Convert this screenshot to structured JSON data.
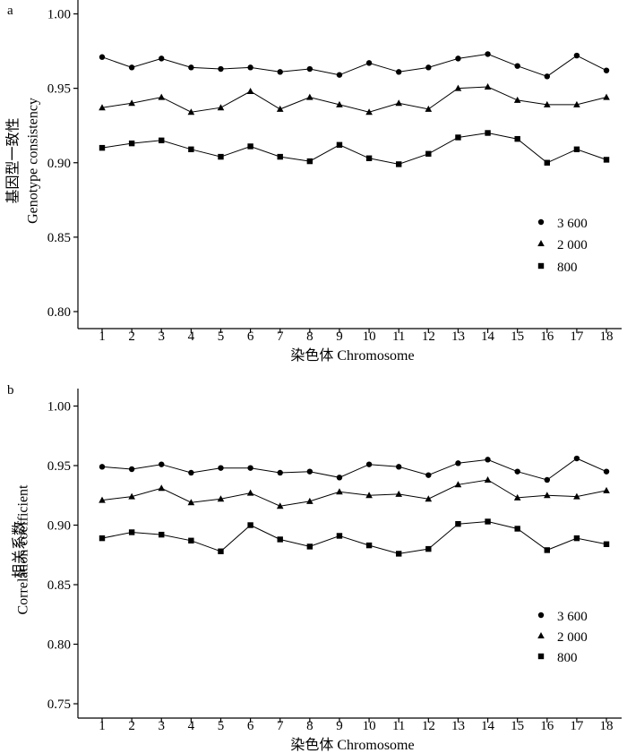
{
  "chart_data": [
    {
      "type": "line",
      "panel_label": "a",
      "ylabel_cn": "基因型一致性",
      "ylabel_en": "Genotype consistency",
      "xlabel": "染色体 Chromosome",
      "ylim": [
        0.8,
        1.0
      ],
      "yticks": [
        "0.80",
        "0.85",
        "0.90",
        "0.95",
        "1.00"
      ],
      "categories": [
        "1",
        "2",
        "3",
        "4",
        "5",
        "6",
        "7",
        "8",
        "9",
        "10",
        "11",
        "12",
        "13",
        "14",
        "15",
        "16",
        "17",
        "18"
      ],
      "legend_position": "bottom-right",
      "series": [
        {
          "name": "3 600",
          "marker": "circle",
          "values": [
            0.971,
            0.964,
            0.97,
            0.964,
            0.963,
            0.964,
            0.961,
            0.963,
            0.959,
            0.967,
            0.961,
            0.964,
            0.97,
            0.973,
            0.965,
            0.958,
            0.972,
            0.962
          ]
        },
        {
          "name": "2 000",
          "marker": "triangle",
          "values": [
            0.937,
            0.94,
            0.944,
            0.934,
            0.937,
            0.948,
            0.936,
            0.944,
            0.939,
            0.934,
            0.94,
            0.936,
            0.95,
            0.951,
            0.942,
            0.939,
            0.939,
            0.944
          ]
        },
        {
          "name": "800",
          "marker": "square",
          "values": [
            0.91,
            0.913,
            0.915,
            0.909,
            0.904,
            0.911,
            0.904,
            0.901,
            0.912,
            0.903,
            0.899,
            0.906,
            0.917,
            0.92,
            0.916,
            0.9,
            0.909,
            0.902
          ]
        }
      ]
    },
    {
      "type": "line",
      "panel_label": "b",
      "ylabel_cn": "相关系数",
      "ylabel_en": "Correlation coefficient",
      "xlabel": "染色体 Chromosome",
      "ylim": [
        0.75,
        1.0
      ],
      "yticks": [
        "0.75",
        "0.80",
        "0.85",
        "0.90",
        "0.95",
        "1.00"
      ],
      "categories": [
        "1",
        "2",
        "3",
        "4",
        "5",
        "6",
        "7",
        "8",
        "9",
        "10",
        "11",
        "12",
        "13",
        "14",
        "15",
        "16",
        "17",
        "18"
      ],
      "legend_position": "bottom-right",
      "series": [
        {
          "name": "3 600",
          "marker": "circle",
          "values": [
            0.949,
            0.947,
            0.951,
            0.944,
            0.948,
            0.948,
            0.944,
            0.945,
            0.94,
            0.951,
            0.949,
            0.942,
            0.952,
            0.955,
            0.945,
            0.938,
            0.956,
            0.945
          ]
        },
        {
          "name": "2 000",
          "marker": "triangle",
          "values": [
            0.921,
            0.924,
            0.931,
            0.919,
            0.922,
            0.927,
            0.916,
            0.92,
            0.928,
            0.925,
            0.926,
            0.922,
            0.934,
            0.938,
            0.923,
            0.925,
            0.924,
            0.929
          ]
        },
        {
          "name": "800",
          "marker": "square",
          "values": [
            0.889,
            0.894,
            0.892,
            0.887,
            0.878,
            0.9,
            0.888,
            0.882,
            0.891,
            0.883,
            0.876,
            0.88,
            0.901,
            0.903,
            0.897,
            0.879,
            0.889,
            0.884
          ]
        }
      ]
    }
  ]
}
